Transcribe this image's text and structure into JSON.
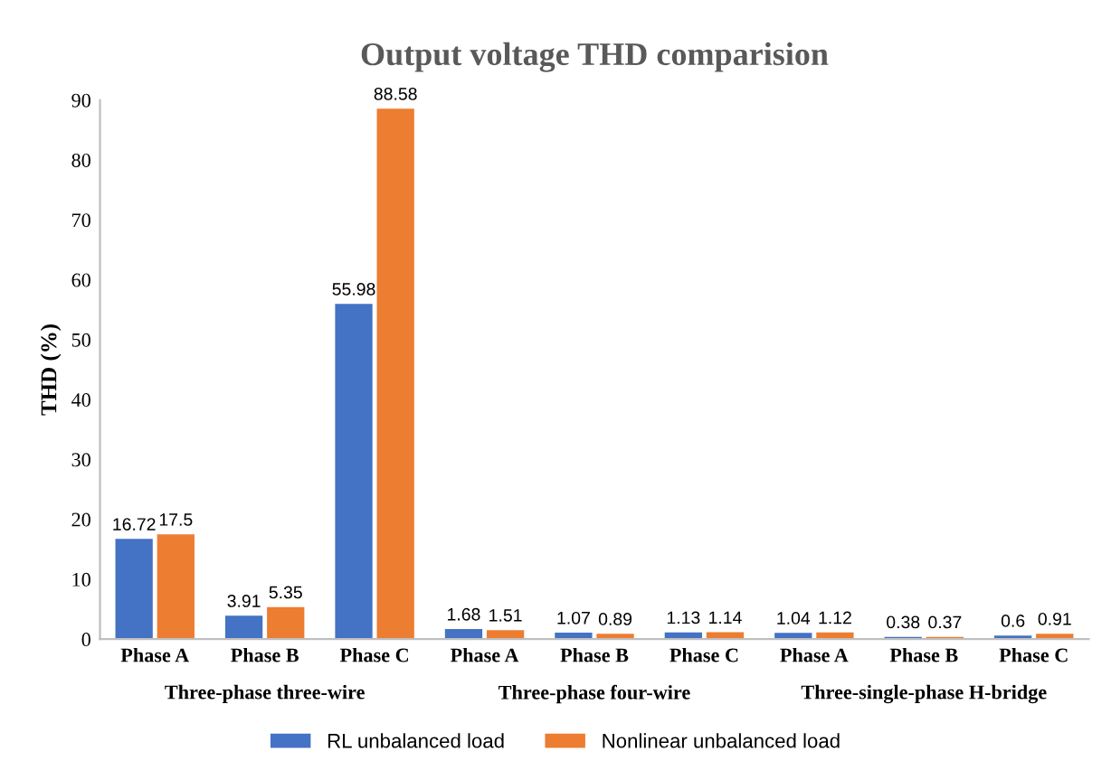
{
  "chart_data": {
    "type": "bar",
    "title": "Output voltage THD comparision",
    "ylabel": "THD (%)",
    "categories": [
      "Phase A",
      "Phase B",
      "Phase C",
      "Phase A",
      "Phase B",
      "Phase C",
      "Phase A",
      "Phase B",
      "Phase C"
    ],
    "series": [
      {
        "name": "RL unbalanced load",
        "color": "#4472c4",
        "values": [
          16.72,
          3.91,
          55.98,
          1.68,
          1.07,
          1.13,
          1.04,
          0.38,
          0.6
        ]
      },
      {
        "name": "Nonlinear unbalanced load",
        "color": "#ed7d31",
        "values": [
          17.5,
          5.35,
          88.58,
          1.51,
          0.89,
          1.14,
          1.12,
          0.37,
          0.91
        ]
      }
    ],
    "annotations": [
      "Three-phase three-wire",
      "Three-phase four-wire",
      "Three-single-phase H-bridge"
    ],
    "ylim": [
      0,
      90
    ],
    "yticks": [
      0,
      10,
      20,
      30,
      40,
      50,
      60,
      70,
      80,
      90
    ],
    "data_labels": true,
    "legend": "bottom",
    "grid": false
  }
}
